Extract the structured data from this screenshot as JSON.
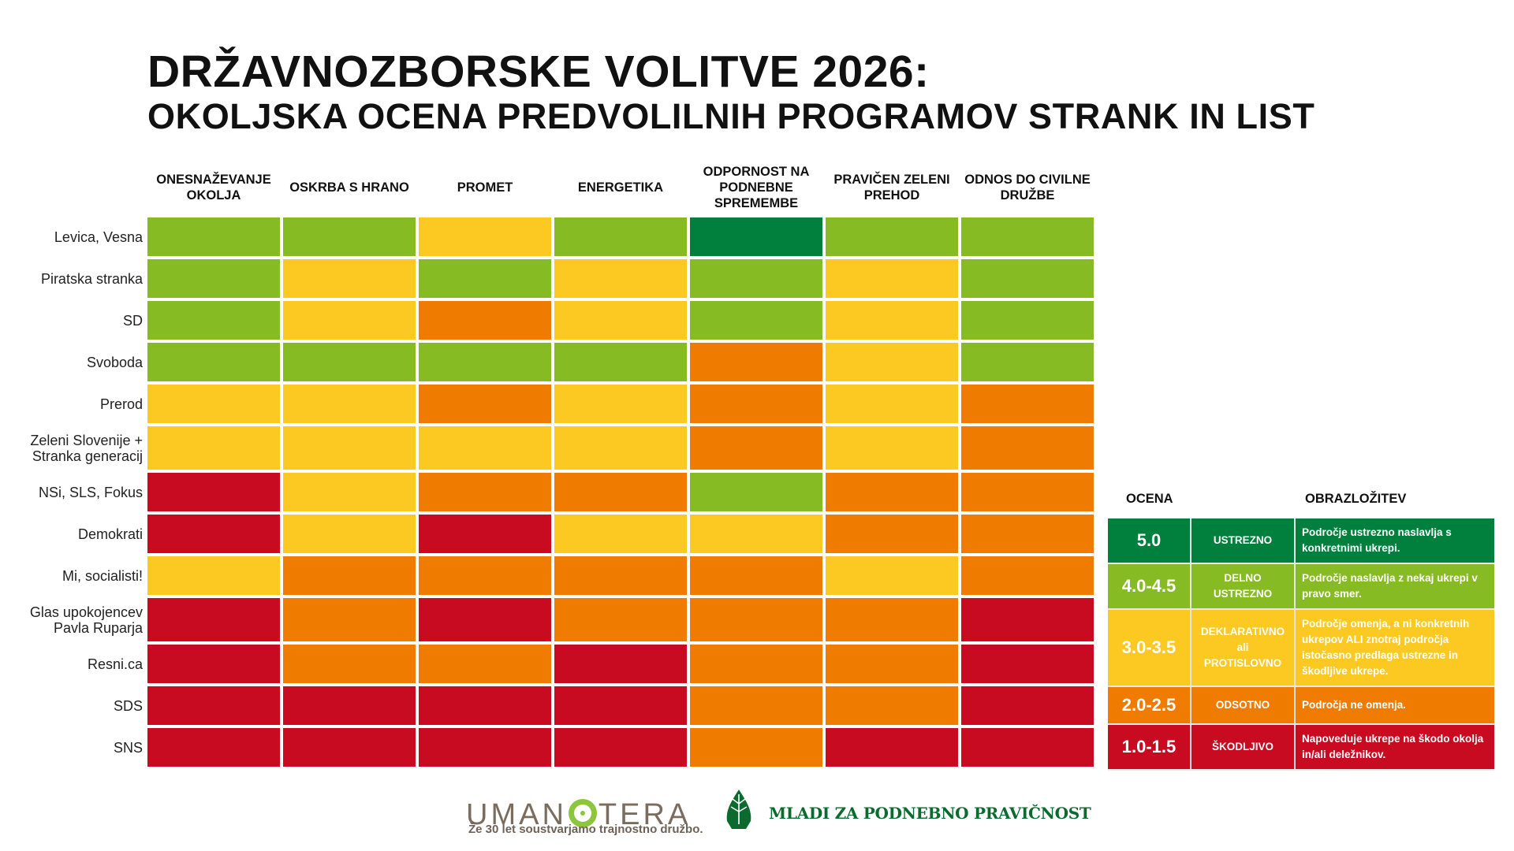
{
  "title": {
    "line1": "DRŽAVNOZBORSKE VOLITVE 2026:",
    "line2": "OKOLJSKA OCENA PREDVOLILNIH PROGRAMOV STRANK IN LIST"
  },
  "colors": {
    "ustrezno": "#007f3d",
    "delno": "#86bb24",
    "deklarativno": "#fbc922",
    "odsotno": "#ef7c00",
    "skodljivo": "#c90b21"
  },
  "chart_data": {
    "type": "heatmap",
    "columns": [
      "ONESNAŽEVANJE OKOLJA",
      "OSKRBA S HRANO",
      "PROMET",
      "ENERGETIKA",
      "ODPORNOST NA PODNEBNE SPREMEMBE",
      "PRAVIČEN ZELENI PREHOD",
      "ODNOS DO CIVILNE DRUŽBE"
    ],
    "rows": [
      {
        "party": "Levica, Vesna",
        "ratings": [
          "delno",
          "delno",
          "deklarativno",
          "delno",
          "ustrezno",
          "delno",
          "delno"
        ]
      },
      {
        "party": "Piratska stranka",
        "ratings": [
          "delno",
          "deklarativno",
          "delno",
          "deklarativno",
          "delno",
          "deklarativno",
          "delno"
        ]
      },
      {
        "party": "SD",
        "ratings": [
          "delno",
          "deklarativno",
          "odsotno",
          "deklarativno",
          "delno",
          "deklarativno",
          "delno"
        ]
      },
      {
        "party": "Svoboda",
        "ratings": [
          "delno",
          "delno",
          "delno",
          "delno",
          "odsotno",
          "deklarativno",
          "delno"
        ]
      },
      {
        "party": "Prerod",
        "ratings": [
          "deklarativno",
          "deklarativno",
          "odsotno",
          "deklarativno",
          "odsotno",
          "deklarativno",
          "odsotno"
        ]
      },
      {
        "party": "Zeleni Slovenije + Stranka generacij",
        "ratings": [
          "deklarativno",
          "deklarativno",
          "deklarativno",
          "deklarativno",
          "odsotno",
          "deklarativno",
          "odsotno"
        ]
      },
      {
        "party": "NSi, SLS, Fokus",
        "ratings": [
          "skodljivo",
          "deklarativno",
          "odsotno",
          "odsotno",
          "delno",
          "odsotno",
          "odsotno"
        ]
      },
      {
        "party": "Demokrati",
        "ratings": [
          "skodljivo",
          "deklarativno",
          "skodljivo",
          "deklarativno",
          "deklarativno",
          "odsotno",
          "odsotno"
        ]
      },
      {
        "party": "Mi, socialisti!",
        "ratings": [
          "deklarativno",
          "odsotno",
          "odsotno",
          "odsotno",
          "odsotno",
          "deklarativno",
          "odsotno"
        ]
      },
      {
        "party": "Glas upokojencev Pavla Ruparja",
        "ratings": [
          "skodljivo",
          "odsotno",
          "skodljivo",
          "odsotno",
          "odsotno",
          "odsotno",
          "skodljivo"
        ]
      },
      {
        "party": "Resni.ca",
        "ratings": [
          "skodljivo",
          "odsotno",
          "odsotno",
          "skodljivo",
          "odsotno",
          "odsotno",
          "skodljivo"
        ]
      },
      {
        "party": "SDS",
        "ratings": [
          "skodljivo",
          "skodljivo",
          "skodljivo",
          "skodljivo",
          "odsotno",
          "odsotno",
          "skodljivo"
        ]
      },
      {
        "party": "SNS",
        "ratings": [
          "skodljivo",
          "skodljivo",
          "skodljivo",
          "skodljivo",
          "odsotno",
          "skodljivo",
          "skodljivo"
        ]
      }
    ]
  },
  "legend": {
    "score_header": "OCENA",
    "desc_header": "OBRAZLOŽITEV",
    "items": [
      {
        "key": "ustrezno",
        "score": "5.0",
        "label": "USTREZNO",
        "desc": "Področje ustrezno naslavlja s konkretnimi ukrepi."
      },
      {
        "key": "delno",
        "score": "4.0-4.5",
        "label": "DELNO\nUSTREZNO",
        "desc": "Področje naslavlja z nekaj ukrepi v pravo smer."
      },
      {
        "key": "deklarativno",
        "score": "3.0-3.5",
        "label": "DEKLARATIVNO\nali\nPROTISLOVNO",
        "desc": "Področje omenja, a ni konkretnih ukrepov ALI znotraj področja istočasno predlaga ustrezne in škodljive ukrepe."
      },
      {
        "key": "odsotno",
        "score": "2.0-2.5",
        "label": "ODSOTNO",
        "desc": "Področja ne omenja."
      },
      {
        "key": "skodljivo",
        "score": "1.0-1.5",
        "label": "ŠKODLJIVO",
        "desc": "Napoveduje ukrepe na škodo okolja in/ali deležnikov."
      }
    ]
  },
  "footer": {
    "umanotera_logo": "UMANOTERA",
    "umanotera_tagline": "Že 30 let soustvarjamo trajnostno družbo.",
    "mladi_logo": "MLADI ZA PODNEBNO PRAVIČNOST"
  }
}
